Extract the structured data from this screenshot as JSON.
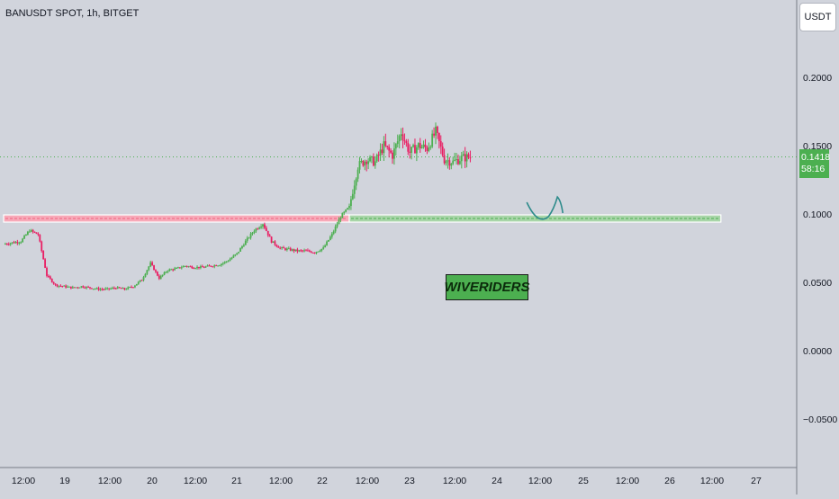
{
  "header": {
    "title": "BANUSDT SPOT, 1h, BITGET"
  },
  "axis": {
    "currency_label": "USDT"
  },
  "last_price": {
    "price": "0.1418",
    "countdown": "58:16",
    "value": 0.1418
  },
  "watermark": {
    "text": "WIVERIDERS"
  },
  "colors": {
    "up": "#4caf50",
    "down": "#e91e63",
    "resistance": "#f0637f",
    "support": "#4caf50",
    "scribble": "#2e8b8b"
  },
  "chart_data": {
    "type": "candlestick",
    "title": "BANUSDT SPOT, 1h, BITGET",
    "ylim": [
      -0.07,
      0.23
    ],
    "yticks": [
      {
        "value": 0.2,
        "label": "0.2000"
      },
      {
        "value": 0.15,
        "label": "0.1500"
      },
      {
        "value": 0.1,
        "label": "0.1000"
      },
      {
        "value": 0.05,
        "label": "0.0500"
      },
      {
        "value": 0.0,
        "label": "0.0000"
      },
      {
        "value": -0.05,
        "label": "−0.0500"
      }
    ],
    "xticks": [
      "12:00",
      "19",
      "12:00",
      "20",
      "12:00",
      "21",
      "12:00",
      "22",
      "12:00",
      "23",
      "12:00",
      "24",
      "12:00",
      "25",
      "12:00",
      "26",
      "12:00",
      "27"
    ],
    "price_path": [
      [
        0,
        0.078
      ],
      [
        1,
        0.079
      ],
      [
        2,
        0.08
      ],
      [
        3,
        0.088
      ],
      [
        4,
        0.085
      ],
      [
        5,
        0.055
      ],
      [
        6,
        0.048
      ],
      [
        7,
        0.047
      ],
      [
        8,
        0.046
      ],
      [
        9,
        0.047
      ],
      [
        10,
        0.046
      ],
      [
        11,
        0.045
      ],
      [
        12,
        0.045
      ],
      [
        13,
        0.046
      ],
      [
        14,
        0.045
      ],
      [
        15,
        0.047
      ],
      [
        16,
        0.052
      ],
      [
        17,
        0.064
      ],
      [
        18,
        0.053
      ],
      [
        19,
        0.059
      ],
      [
        20,
        0.06
      ],
      [
        21,
        0.062
      ],
      [
        22,
        0.061
      ],
      [
        23,
        0.061
      ],
      [
        24,
        0.062
      ],
      [
        25,
        0.063
      ],
      [
        26,
        0.066
      ],
      [
        27,
        0.071
      ],
      [
        28,
        0.08
      ],
      [
        29,
        0.088
      ],
      [
        30,
        0.093
      ],
      [
        31,
        0.08
      ],
      [
        32,
        0.075
      ],
      [
        33,
        0.074
      ],
      [
        34,
        0.073
      ],
      [
        35,
        0.073
      ],
      [
        36,
        0.072
      ],
      [
        37,
        0.075
      ],
      [
        38,
        0.085
      ],
      [
        39,
        0.098
      ],
      [
        40,
        0.105
      ],
      [
        41,
        0.135
      ],
      [
        42,
        0.14
      ],
      [
        43,
        0.138
      ],
      [
        44,
        0.15
      ],
      [
        45,
        0.143
      ],
      [
        46,
        0.16
      ],
      [
        47,
        0.145
      ],
      [
        48,
        0.15
      ],
      [
        49,
        0.148
      ],
      [
        50,
        0.16
      ],
      [
        51,
        0.14
      ],
      [
        52,
        0.138
      ],
      [
        53,
        0.141
      ],
      [
        54,
        0.1418
      ]
    ],
    "zones": [
      {
        "name": "resistance",
        "value": 0.0967,
        "from": 0,
        "to": 40
      },
      {
        "name": "support",
        "value": 0.0967,
        "from": 40,
        "to": 83
      }
    ]
  }
}
